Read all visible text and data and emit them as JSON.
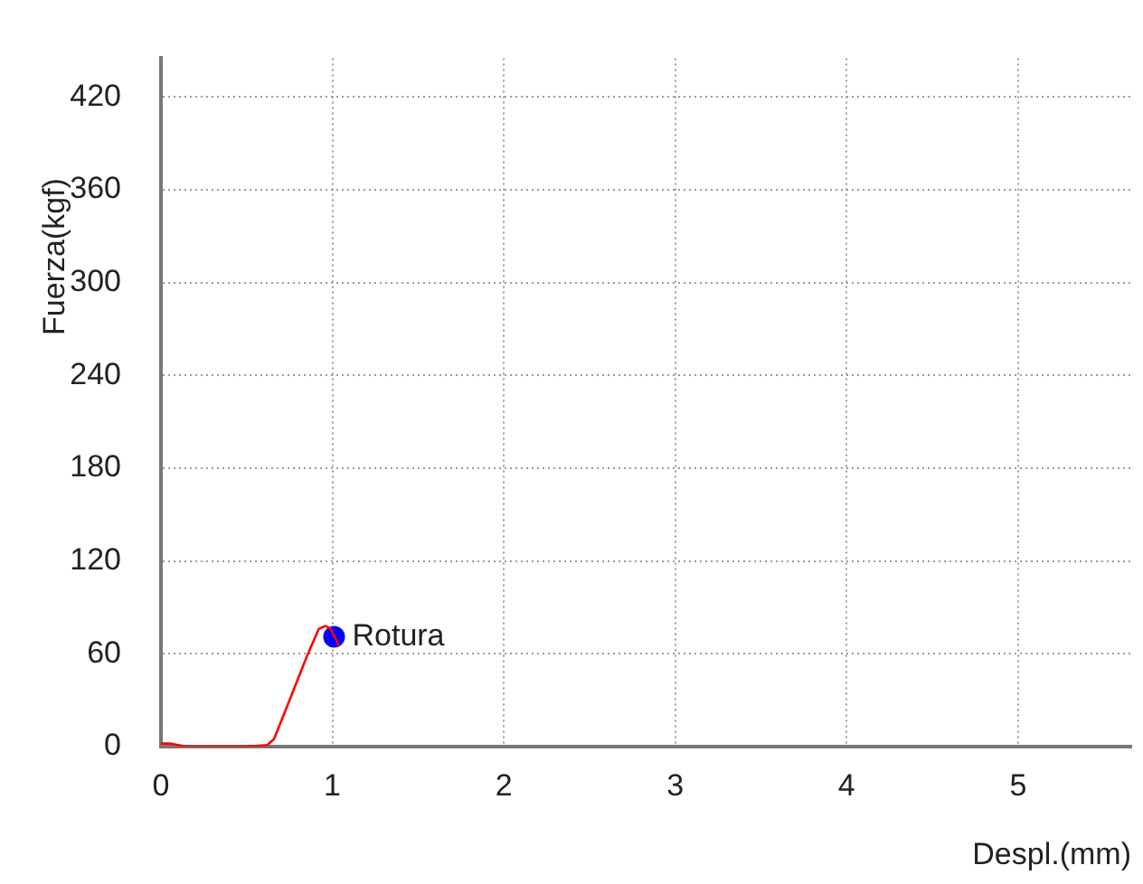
{
  "chart_data": {
    "type": "line",
    "xlabel": "Despl.(mm)",
    "ylabel": "Fuerza(kgf)",
    "xlim": [
      0,
      5.66
    ],
    "ylim": [
      0,
      445
    ],
    "xticks": [
      0,
      1,
      2,
      3,
      4,
      5
    ],
    "yticks": [
      0,
      60,
      120,
      180,
      240,
      300,
      360,
      420
    ],
    "grid": true,
    "legend": false,
    "marker": "none",
    "line_style": "solid",
    "series": [
      {
        "color": "#ff0000",
        "x": [
          0,
          0.05,
          0.15,
          0.5,
          0.62,
          0.66,
          0.75,
          0.85,
          0.92,
          0.96,
          0.99,
          1.04
        ],
        "values": [
          2,
          2,
          0,
          0,
          1,
          5,
          30,
          58,
          76,
          78,
          76,
          65
        ]
      },
      {
        "name": "Rotura",
        "type": "scatter",
        "marker": "circle",
        "color": "#0000ff",
        "x": [
          1.01
        ],
        "values": [
          71
        ]
      }
    ]
  }
}
